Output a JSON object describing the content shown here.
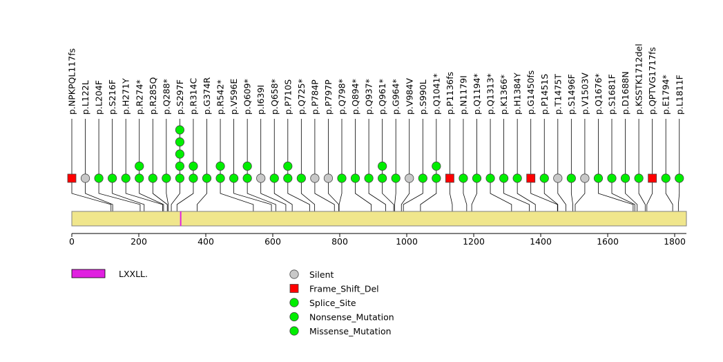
{
  "chart_data": {
    "type": "lollipop",
    "protein_length": 1835,
    "axis": {
      "min": 0,
      "max": 1835,
      "ticks": [
        0,
        200,
        400,
        600,
        800,
        1000,
        1200,
        1400,
        1600,
        1800
      ]
    },
    "domains": [
      {
        "name": "LXXLL.",
        "start": 323,
        "end": 327,
        "color": "#e020e0"
      }
    ],
    "mutation_types": [
      {
        "name": "Silent",
        "color": "#c8c8c8",
        "shape": "circle"
      },
      {
        "name": "Frame_Shift_Del",
        "color": "#ff0000",
        "shape": "square"
      },
      {
        "name": "Splice_Site",
        "color": "#00ee00",
        "shape": "circle"
      },
      {
        "name": "Nonsense_Mutation",
        "color": "#00ee00",
        "shape": "circle"
      },
      {
        "name": "Missense_Mutation",
        "color": "#00ee00",
        "shape": "circle"
      }
    ],
    "mutations": [
      {
        "label": "p.NPKPQL117fs",
        "position": 117,
        "count": 1,
        "type": "Frame_Shift_Del"
      },
      {
        "label": "p.L122L",
        "position": 122,
        "count": 1,
        "type": "Silent"
      },
      {
        "label": "p.L204F",
        "position": 204,
        "count": 1,
        "type": "Missense_Mutation"
      },
      {
        "label": "p.S216F",
        "position": 216,
        "count": 1,
        "type": "Missense_Mutation"
      },
      {
        "label": "p.H271Y",
        "position": 271,
        "count": 1,
        "type": "Missense_Mutation"
      },
      {
        "label": "p.R274*",
        "position": 274,
        "count": 2,
        "type": "Nonsense_Mutation"
      },
      {
        "label": "p.R285Q",
        "position": 285,
        "count": 1,
        "type": "Missense_Mutation"
      },
      {
        "label": "p.Q288*",
        "position": 288,
        "count": 1,
        "type": "Nonsense_Mutation"
      },
      {
        "label": "p.S297F",
        "position": 297,
        "count": 5,
        "type": "Missense_Mutation"
      },
      {
        "label": "p.R314C",
        "position": 314,
        "count": 2,
        "type": "Missense_Mutation"
      },
      {
        "label": "p.G374R",
        "position": 374,
        "count": 1,
        "type": "Missense_Mutation"
      },
      {
        "label": "p.R542*",
        "position": 542,
        "count": 2,
        "type": "Nonsense_Mutation"
      },
      {
        "label": "p.V596E",
        "position": 596,
        "count": 1,
        "type": "Missense_Mutation"
      },
      {
        "label": "p.Q609*",
        "position": 609,
        "count": 2,
        "type": "Nonsense_Mutation"
      },
      {
        "label": "p.I639I",
        "position": 639,
        "count": 1,
        "type": "Silent"
      },
      {
        "label": "p.Q658*",
        "position": 658,
        "count": 1,
        "type": "Nonsense_Mutation"
      },
      {
        "label": "p.P710S",
        "position": 710,
        "count": 2,
        "type": "Missense_Mutation"
      },
      {
        "label": "p.Q725*",
        "position": 725,
        "count": 1,
        "type": "Nonsense_Mutation"
      },
      {
        "label": "p.P784P",
        "position": 784,
        "count": 1,
        "type": "Silent"
      },
      {
        "label": "p.P797P",
        "position": 797,
        "count": 1,
        "type": "Silent"
      },
      {
        "label": "p.Q798*",
        "position": 798,
        "count": 1,
        "type": "Nonsense_Mutation"
      },
      {
        "label": "p.Q894*",
        "position": 894,
        "count": 1,
        "type": "Nonsense_Mutation"
      },
      {
        "label": "p.Q937*",
        "position": 937,
        "count": 1,
        "type": "Nonsense_Mutation"
      },
      {
        "label": "p.Q961*",
        "position": 961,
        "count": 2,
        "type": "Nonsense_Mutation"
      },
      {
        "label": "p.G964*",
        "position": 964,
        "count": 1,
        "type": "Nonsense_Mutation"
      },
      {
        "label": "p.V984V",
        "position": 984,
        "count": 1,
        "type": "Silent"
      },
      {
        "label": "p.S990L",
        "position": 990,
        "count": 1,
        "type": "Missense_Mutation"
      },
      {
        "label": "p.Q1041*",
        "position": 1041,
        "count": 2,
        "type": "Nonsense_Mutation"
      },
      {
        "label": "p.P1136fs",
        "position": 1136,
        "count": 1,
        "type": "Frame_Shift_Del"
      },
      {
        "label": "p.N1179I",
        "position": 1179,
        "count": 1,
        "type": "Missense_Mutation"
      },
      {
        "label": "p.Q1194*",
        "position": 1194,
        "count": 1,
        "type": "Nonsense_Mutation"
      },
      {
        "label": "p.Q1313*",
        "position": 1313,
        "count": 1,
        "type": "Nonsense_Mutation"
      },
      {
        "label": "p.K1366*",
        "position": 1366,
        "count": 1,
        "type": "Nonsense_Mutation"
      },
      {
        "label": "p.H1384Y",
        "position": 1384,
        "count": 1,
        "type": "Missense_Mutation"
      },
      {
        "label": "p.G1450fs",
        "position": 1450,
        "count": 1,
        "type": "Frame_Shift_Del"
      },
      {
        "label": "p.P1451S",
        "position": 1451,
        "count": 1,
        "type": "Missense_Mutation"
      },
      {
        "label": "p.T1475T",
        "position": 1475,
        "count": 1,
        "type": "Silent"
      },
      {
        "label": "p.S1496F",
        "position": 1496,
        "count": 1,
        "type": "Missense_Mutation"
      },
      {
        "label": "p.V1503V",
        "position": 1503,
        "count": 1,
        "type": "Silent"
      },
      {
        "label": "p.Q1676*",
        "position": 1676,
        "count": 1,
        "type": "Nonsense_Mutation"
      },
      {
        "label": "p.S1681F",
        "position": 1681,
        "count": 1,
        "type": "Missense_Mutation"
      },
      {
        "label": "p.D1688N",
        "position": 1688,
        "count": 1,
        "type": "Missense_Mutation"
      },
      {
        "label": "p.KSSTK1712del",
        "position": 1712,
        "count": 1,
        "type": "Missense_Mutation"
      },
      {
        "label": "p.QPTVG1717fs",
        "position": 1717,
        "count": 1,
        "type": "Frame_Shift_Del"
      },
      {
        "label": "p.E1794*",
        "position": 1794,
        "count": 1,
        "type": "Nonsense_Mutation"
      },
      {
        "label": "p.L1811F",
        "position": 1811,
        "count": 1,
        "type": "Missense_Mutation"
      }
    ]
  }
}
